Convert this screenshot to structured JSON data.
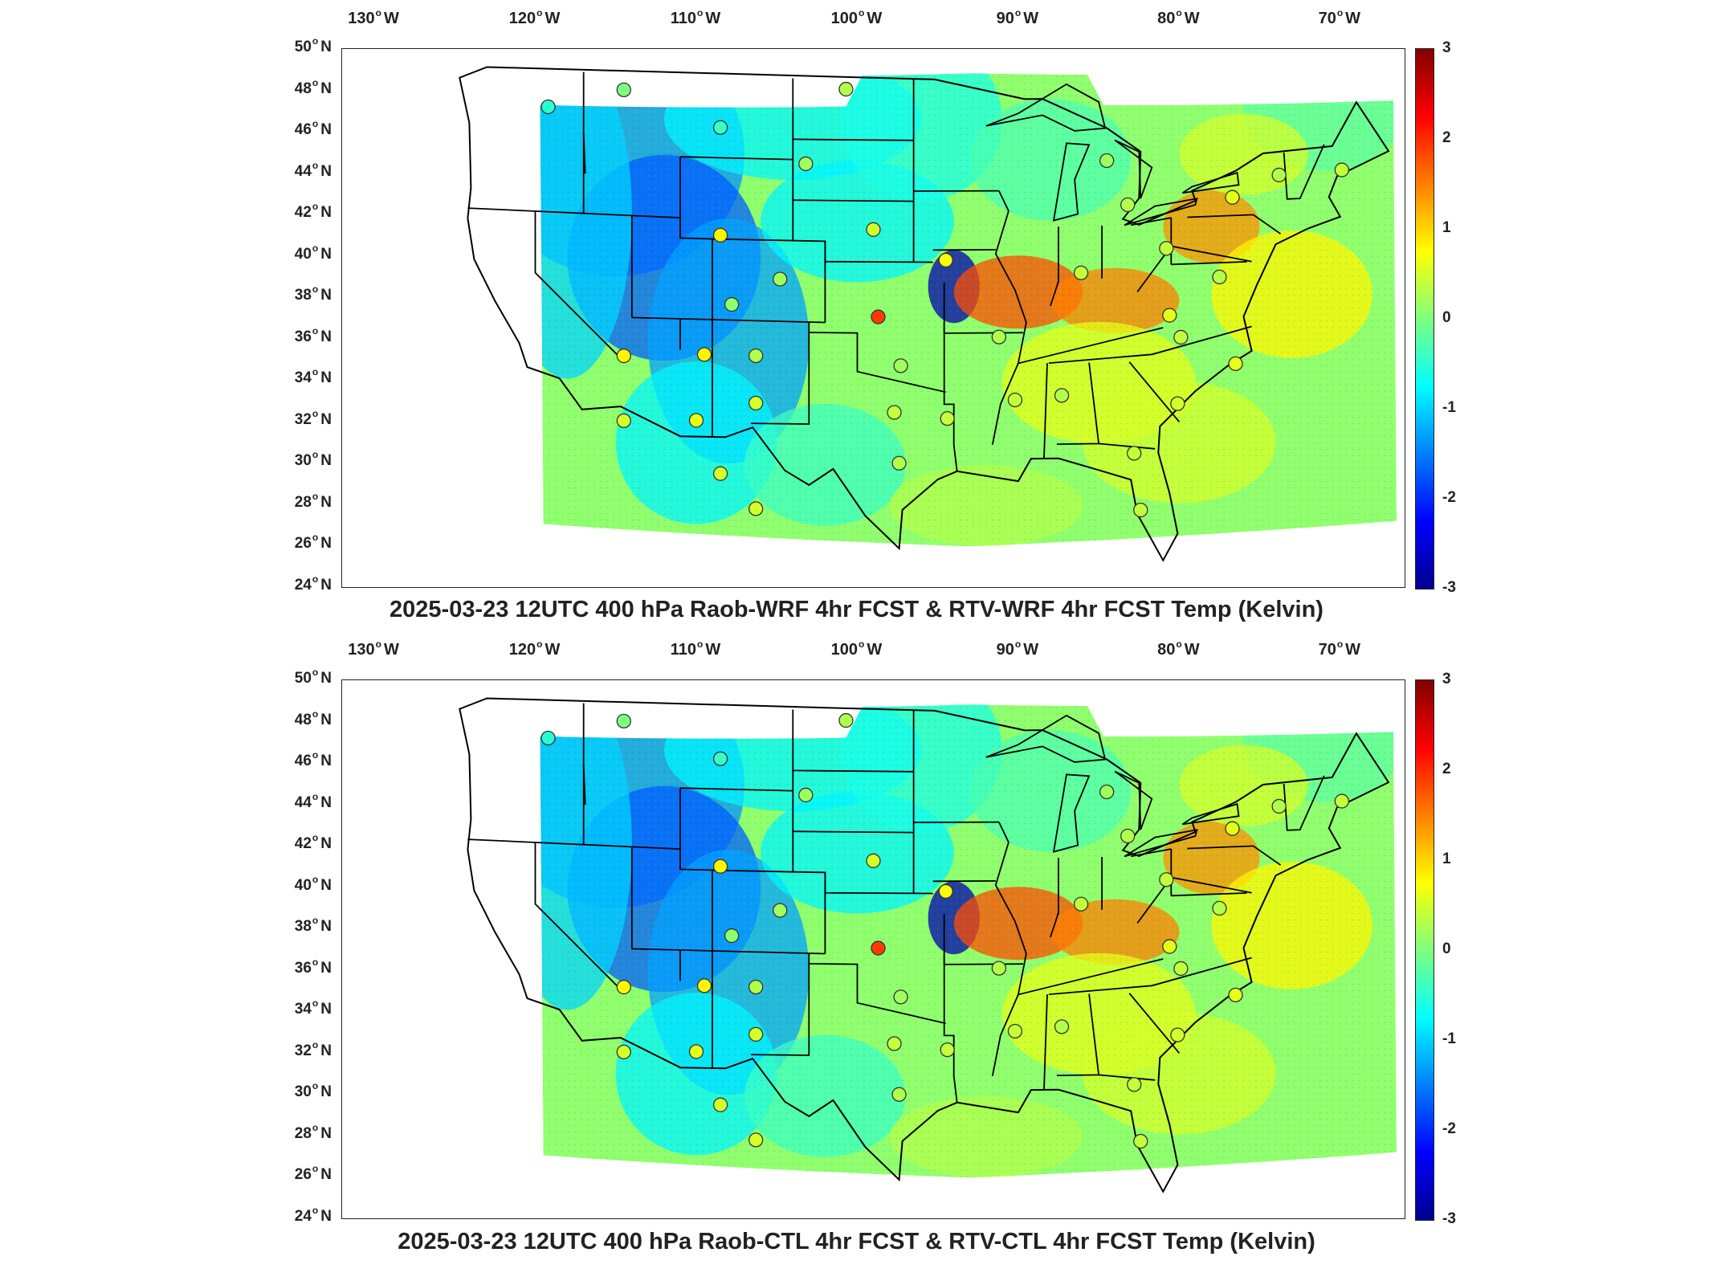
{
  "lon_ticks": [
    "130",
    "120",
    "110",
    "100",
    "90",
    "80",
    "70"
  ],
  "lon_suffix": "W",
  "lat_ticks": [
    "50",
    "48",
    "46",
    "44",
    "42",
    "40",
    "38",
    "36",
    "34",
    "32",
    "30",
    "28",
    "26",
    "24"
  ],
  "lat_suffix": "N",
  "colorbar": {
    "ticks": [
      "3",
      "2",
      "1",
      "0",
      "-1",
      "-2",
      "-3"
    ],
    "range": [
      -3,
      3
    ],
    "colors": [
      "#00008f",
      "#0000ff",
      "#007fff",
      "#00ffff",
      "#7fff7f",
      "#ffff00",
      "#ff7f00",
      "#ff0000",
      "#800000"
    ]
  },
  "panels": [
    {
      "title": "2025-03-23 12UTC 400 hPa Raob-WRF 4hr FCST & RTV-WRF 4hr FCST Temp (Kelvin)",
      "stations": [
        {
          "lon": -119.2,
          "lat": 47.2,
          "value": -0.5
        },
        {
          "lon": -114.5,
          "lat": 48.2,
          "value": 0.0
        },
        {
          "lon": -108.5,
          "lat": 46.5,
          "value": -0.4
        },
        {
          "lon": -108.5,
          "lat": 41.2,
          "value": 0.8
        },
        {
          "lon": -107.8,
          "lat": 37.8,
          "value": 0.1
        },
        {
          "lon": -114.5,
          "lat": 35.1,
          "value": 0.8
        },
        {
          "lon": -109.5,
          "lat": 35.3,
          "value": 0.8
        },
        {
          "lon": -106.3,
          "lat": 35.3,
          "value": 0.3
        },
        {
          "lon": -114.5,
          "lat": 32.0,
          "value": 0.5
        },
        {
          "lon": -110.0,
          "lat": 32.1,
          "value": 0.6
        },
        {
          "lon": -108.5,
          "lat": 29.5,
          "value": 0.5
        },
        {
          "lon": -106.3,
          "lat": 33.0,
          "value": 0.5
        },
        {
          "lon": -104.8,
          "lat": 39.1,
          "value": 0.2
        },
        {
          "lon": -103.2,
          "lat": 44.8,
          "value": 0.2
        },
        {
          "lon": -100.7,
          "lat": 48.5,
          "value": 0.3
        },
        {
          "lon": -99.0,
          "lat": 41.6,
          "value": 0.5
        },
        {
          "lon": -98.7,
          "lat": 37.3,
          "value": 1.9
        },
        {
          "lon": -97.3,
          "lat": 34.9,
          "value": 0.2
        },
        {
          "lon": -97.7,
          "lat": 32.6,
          "value": 0.4
        },
        {
          "lon": -97.4,
          "lat": 30.1,
          "value": 0.3
        },
        {
          "lon": -106.3,
          "lat": 27.8,
          "value": 0.5
        },
        {
          "lon": -94.5,
          "lat": 40.1,
          "value": 0.7
        },
        {
          "lon": -94.4,
          "lat": 32.3,
          "value": 0.4
        },
        {
          "lon": -91.2,
          "lat": 36.3,
          "value": 0.3
        },
        {
          "lon": -90.2,
          "lat": 33.2,
          "value": 0.4
        },
        {
          "lon": -87.3,
          "lat": 33.4,
          "value": 0.3
        },
        {
          "lon": -86.1,
          "lat": 39.4,
          "value": 0.4
        },
        {
          "lon": -84.5,
          "lat": 44.9,
          "value": 0.2
        },
        {
          "lon": -83.2,
          "lat": 42.7,
          "value": 0.3
        },
        {
          "lon": -80.8,
          "lat": 40.5,
          "value": 0.4
        },
        {
          "lon": -80.6,
          "lat": 37.2,
          "value": 0.6
        },
        {
          "lon": -79.9,
          "lat": 36.1,
          "value": 0.4
        },
        {
          "lon": -80.1,
          "lat": 32.9,
          "value": 0.5
        },
        {
          "lon": -82.8,
          "lat": 30.5,
          "value": 0.4
        },
        {
          "lon": -82.4,
          "lat": 27.7,
          "value": 0.4
        },
        {
          "lon": -76.5,
          "lat": 34.8,
          "value": 0.6
        },
        {
          "lon": -77.5,
          "lat": 39.0,
          "value": 0.3
        },
        {
          "lon": -76.7,
          "lat": 42.9,
          "value": 0.6
        },
        {
          "lon": -73.8,
          "lat": 43.9,
          "value": 0.3
        },
        {
          "lon": -69.9,
          "lat": 44.0,
          "value": 0.4
        }
      ]
    },
    {
      "title": "2025-03-23 12UTC 400 hPa Raob-CTL 4hr FCST & RTV-CTL 4hr FCST Temp (Kelvin)",
      "stations": [
        {
          "lon": -119.2,
          "lat": 47.2,
          "value": -0.5
        },
        {
          "lon": -114.5,
          "lat": 48.2,
          "value": 0.0
        },
        {
          "lon": -108.5,
          "lat": 46.5,
          "value": -0.4
        },
        {
          "lon": -108.5,
          "lat": 41.2,
          "value": 0.8
        },
        {
          "lon": -107.8,
          "lat": 37.8,
          "value": 0.1
        },
        {
          "lon": -114.5,
          "lat": 35.1,
          "value": 0.8
        },
        {
          "lon": -109.5,
          "lat": 35.3,
          "value": 0.8
        },
        {
          "lon": -106.3,
          "lat": 35.3,
          "value": 0.3
        },
        {
          "lon": -114.5,
          "lat": 32.0,
          "value": 0.5
        },
        {
          "lon": -110.0,
          "lat": 32.1,
          "value": 0.6
        },
        {
          "lon": -108.5,
          "lat": 29.5,
          "value": 0.5
        },
        {
          "lon": -106.3,
          "lat": 33.0,
          "value": 0.5
        },
        {
          "lon": -104.8,
          "lat": 39.1,
          "value": 0.2
        },
        {
          "lon": -103.2,
          "lat": 44.8,
          "value": 0.2
        },
        {
          "lon": -100.7,
          "lat": 48.5,
          "value": 0.3
        },
        {
          "lon": -99.0,
          "lat": 41.6,
          "value": 0.5
        },
        {
          "lon": -98.7,
          "lat": 37.3,
          "value": 1.9
        },
        {
          "lon": -97.3,
          "lat": 34.9,
          "value": 0.2
        },
        {
          "lon": -97.7,
          "lat": 32.6,
          "value": 0.4
        },
        {
          "lon": -97.4,
          "lat": 30.1,
          "value": 0.3
        },
        {
          "lon": -106.3,
          "lat": 27.8,
          "value": 0.5
        },
        {
          "lon": -94.5,
          "lat": 40.1,
          "value": 0.7
        },
        {
          "lon": -94.4,
          "lat": 32.3,
          "value": 0.4
        },
        {
          "lon": -91.2,
          "lat": 36.3,
          "value": 0.3
        },
        {
          "lon": -90.2,
          "lat": 33.2,
          "value": 0.4
        },
        {
          "lon": -87.3,
          "lat": 33.4,
          "value": 0.3
        },
        {
          "lon": -86.1,
          "lat": 39.4,
          "value": 0.4
        },
        {
          "lon": -84.5,
          "lat": 44.9,
          "value": 0.2
        },
        {
          "lon": -83.2,
          "lat": 42.7,
          "value": 0.3
        },
        {
          "lon": -80.8,
          "lat": 40.5,
          "value": 0.4
        },
        {
          "lon": -80.6,
          "lat": 37.2,
          "value": 0.6
        },
        {
          "lon": -79.9,
          "lat": 36.1,
          "value": 0.4
        },
        {
          "lon": -80.1,
          "lat": 32.9,
          "value": 0.5
        },
        {
          "lon": -82.8,
          "lat": 30.5,
          "value": 0.4
        },
        {
          "lon": -82.4,
          "lat": 27.7,
          "value": 0.4
        },
        {
          "lon": -76.5,
          "lat": 34.8,
          "value": 0.6
        },
        {
          "lon": -77.5,
          "lat": 39.0,
          "value": 0.3
        },
        {
          "lon": -76.7,
          "lat": 42.9,
          "value": 0.6
        },
        {
          "lon": -73.8,
          "lat": 43.9,
          "value": 0.3
        },
        {
          "lon": -69.9,
          "lat": 44.0,
          "value": 0.4
        }
      ]
    }
  ]
}
